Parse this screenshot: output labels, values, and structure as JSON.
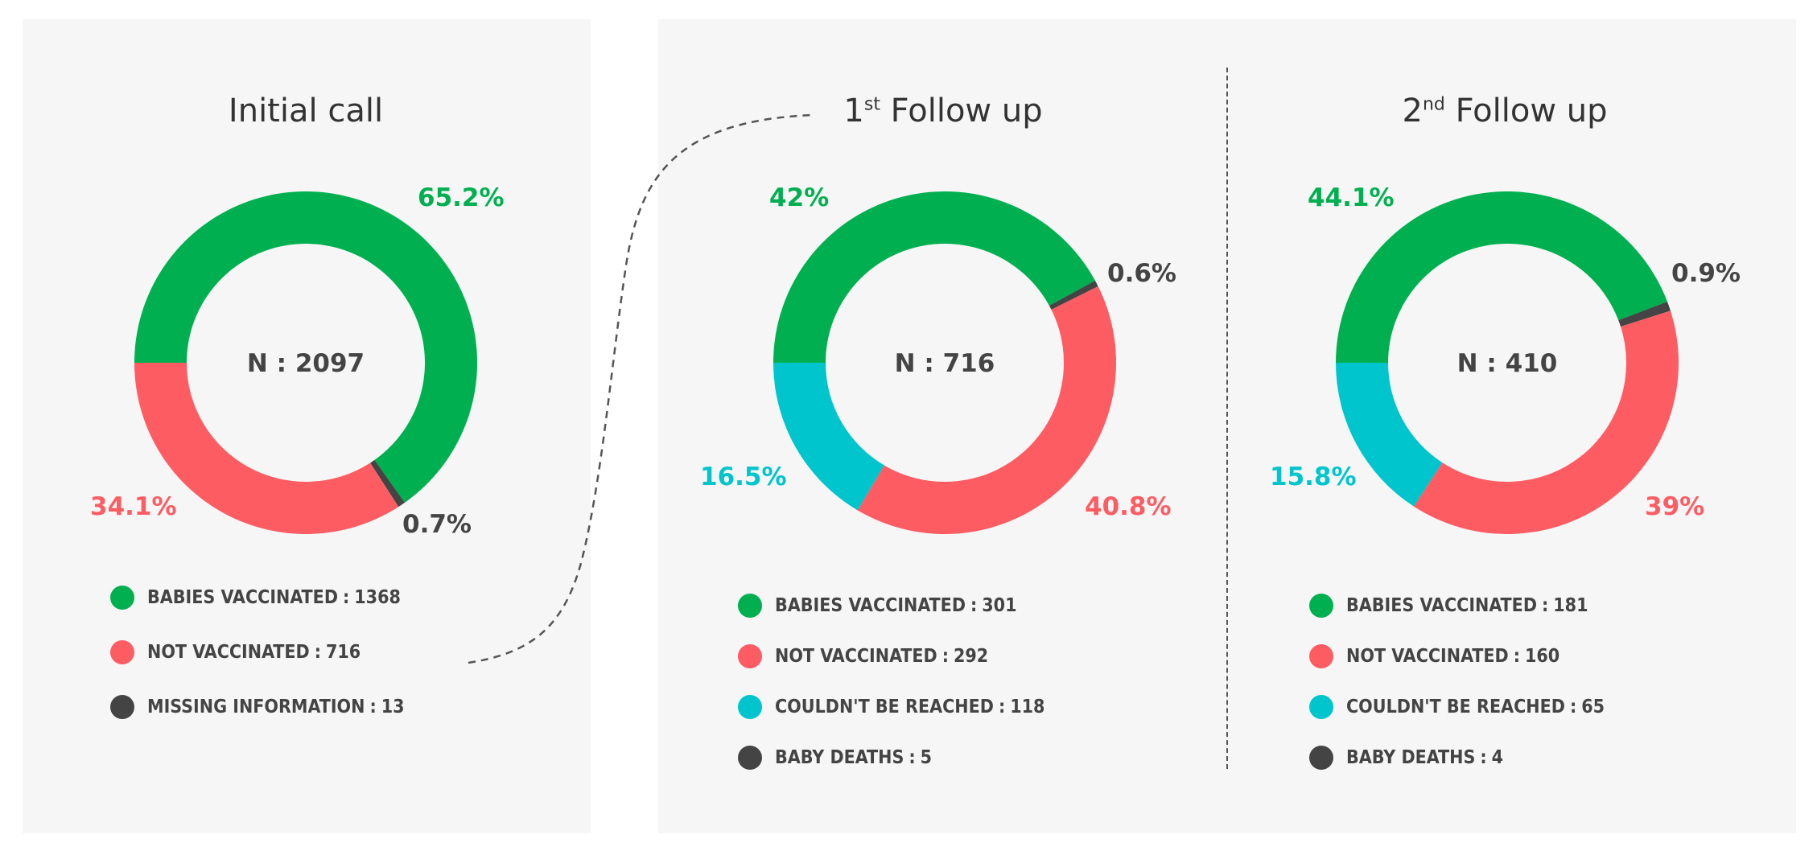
{
  "colors": {
    "vaccinated": "#00b050",
    "not_vaccinated": "#fd5c63",
    "unreached": "#00c5cd",
    "dark": "#444444"
  },
  "chart_data": [
    {
      "type": "pie",
      "title": {
        "main": "Initial call",
        "sup": ""
      },
      "center": "N : 2097",
      "slices": [
        {
          "pct": 65.2,
          "label": "65.2%",
          "key": "vaccinated"
        },
        {
          "pct": 0.7,
          "label": "0.7%",
          "key": "dark"
        },
        {
          "pct": 34.1,
          "label": "34.1%",
          "key": "not_vaccinated"
        }
      ],
      "legend": [
        {
          "label": "BABIES VACCINATED",
          "sep": ":",
          "value": "1368",
          "key": "vaccinated"
        },
        {
          "label": "NOT VACCINATED",
          "sep": ":",
          "value": "716",
          "key": "not_vaccinated"
        },
        {
          "label": "MISSING INFORMATION",
          "sep": ":",
          "value": "13",
          "key": "dark"
        }
      ]
    },
    {
      "type": "pie",
      "title": {
        "main": "1",
        "sup": "st",
        "rest": " Follow up"
      },
      "center": "N : 716",
      "slices": [
        {
          "pct": 42,
          "label": "42%",
          "key": "vaccinated"
        },
        {
          "pct": 0.6,
          "label": "0.6%",
          "key": "dark"
        },
        {
          "pct": 40.8,
          "label": "40.8%",
          "key": "not_vaccinated"
        },
        {
          "pct": 16.5,
          "label": "16.5%",
          "key": "unreached"
        }
      ],
      "legend": [
        {
          "label": "BABIES VACCINATED",
          "sep": ":",
          "value": "301",
          "key": "vaccinated"
        },
        {
          "label": "NOT VACCINATED",
          "sep": ":",
          "value": "292",
          "key": "not_vaccinated"
        },
        {
          "label": "COULDN'T BE REACHED",
          "sep": ":",
          "value": "118",
          "key": "unreached"
        },
        {
          "label": "BABY DEATHS",
          "sep": ":",
          "value": "5",
          "key": "dark"
        }
      ]
    },
    {
      "type": "pie",
      "title": {
        "main": "2",
        "sup": "nd",
        "rest": " Follow up"
      },
      "center": "N : 410",
      "slices": [
        {
          "pct": 44.1,
          "label": "44.1%",
          "key": "vaccinated"
        },
        {
          "pct": 0.9,
          "label": "0.9%",
          "key": "dark"
        },
        {
          "pct": 39,
          "label": "39%",
          "key": "not_vaccinated"
        },
        {
          "pct": 15.8,
          "label": "15.8%",
          "key": "unreached"
        }
      ],
      "legend": [
        {
          "label": "BABIES VACCINATED",
          "sep": ":",
          "value": "181",
          "key": "vaccinated"
        },
        {
          "label": "NOT VACCINATED",
          "sep": ":",
          "value": "160",
          "key": "not_vaccinated"
        },
        {
          "label": "COULDN'T BE REACHED",
          "sep": ":",
          "value": "65",
          "key": "unreached"
        },
        {
          "label": "BABY DEATHS",
          "sep": ":",
          "value": "4",
          "key": "dark"
        }
      ]
    }
  ]
}
